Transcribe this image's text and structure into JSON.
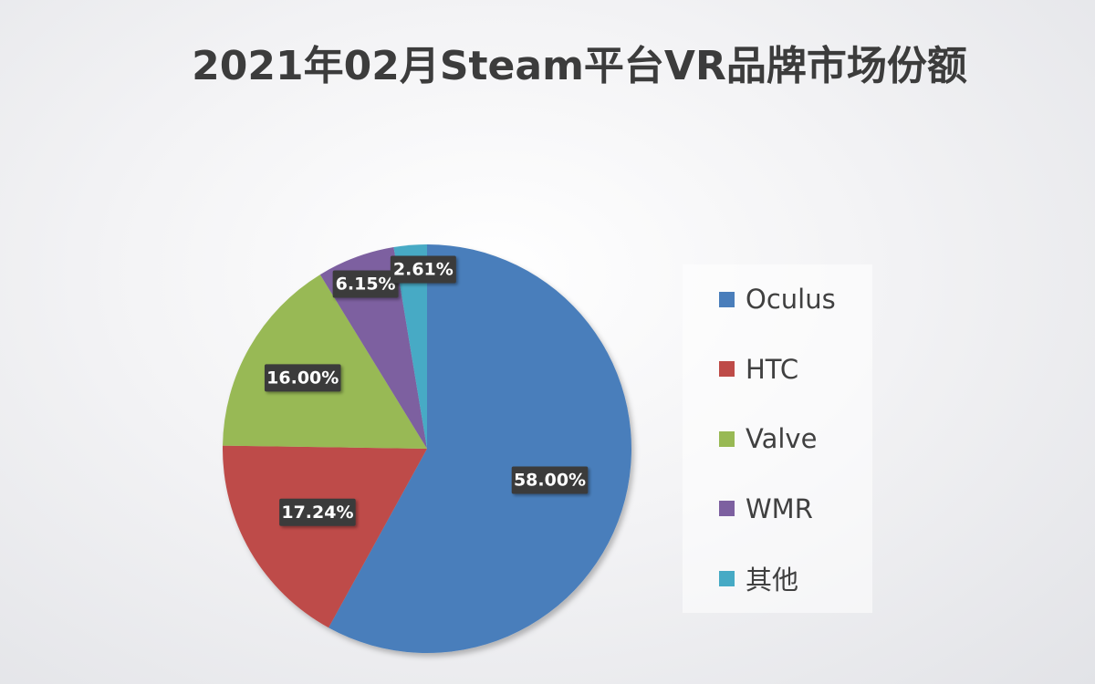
{
  "chart_data": {
    "type": "pie",
    "title": "2021年02月Steam平台VR品牌市场份额",
    "categories": [
      "Oculus",
      "HTC",
      "Valve",
      "WMR",
      "其他"
    ],
    "values": [
      58.0,
      17.24,
      16.0,
      6.15,
      2.61
    ],
    "data_labels": [
      "58.00%",
      "17.24%",
      "16.00%",
      "6.15%",
      "2.61%"
    ],
    "colors": [
      "#4a7ebb",
      "#be4b48",
      "#98b954",
      "#7d60a0",
      "#46aac5"
    ],
    "legend_position": "right",
    "start_angle_deg": 0,
    "direction": "clockwise"
  }
}
